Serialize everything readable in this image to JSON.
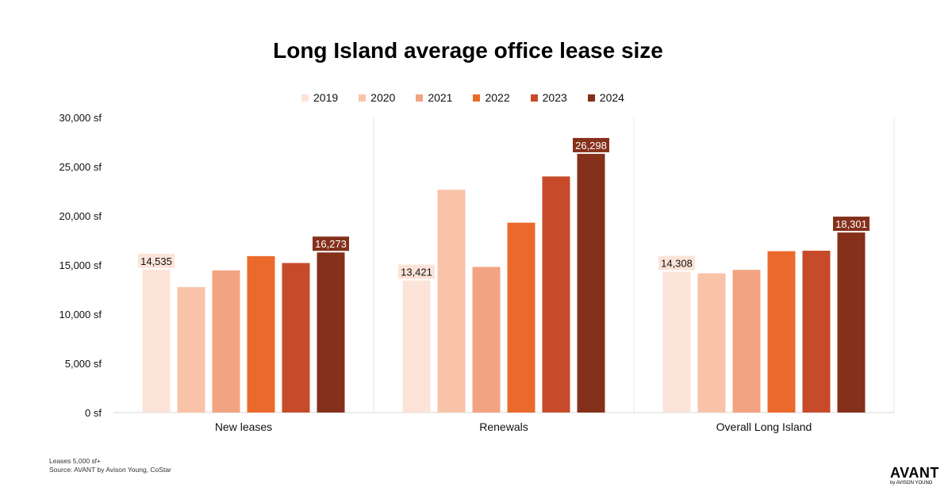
{
  "chart_data": {
    "type": "bar",
    "title": "Long Island average office lease size",
    "categories": [
      "New leases",
      "Renewals",
      "Overall Long Island"
    ],
    "series": [
      {
        "name": "2019",
        "color": "#fce3d8",
        "values": [
          14535,
          13421,
          14308
        ]
      },
      {
        "name": "2020",
        "color": "#f8c3a9",
        "values": [
          12750,
          22650,
          14150
        ]
      },
      {
        "name": "2021",
        "color": "#f2a482",
        "values": [
          14450,
          14800,
          14500
        ]
      },
      {
        "name": "2022",
        "color": "#eb6a2b",
        "values": [
          15900,
          19300,
          16400
        ]
      },
      {
        "name": "2023",
        "color": "#c74b2a",
        "values": [
          15200,
          24000,
          16450
        ]
      },
      {
        "name": "2024",
        "color": "#84301b",
        "values": [
          16273,
          26298,
          18301
        ]
      }
    ],
    "data_labels": [
      {
        "series": "2019",
        "category": "New leases",
        "text": "14,535"
      },
      {
        "series": "2024",
        "category": "New leases",
        "text": "16,273"
      },
      {
        "series": "2019",
        "category": "Renewals",
        "text": "13,421"
      },
      {
        "series": "2024",
        "category": "Renewals",
        "text": "26,298"
      },
      {
        "series": "2019",
        "category": "Overall Long Island",
        "text": "14,308"
      },
      {
        "series": "2024",
        "category": "Overall Long Island",
        "text": "18,301"
      }
    ],
    "y_ticks": [
      "0 sf",
      "5,000 sf",
      "10,000 sf",
      "15,000 sf",
      "20,000 sf",
      "25,000 sf",
      "30,000 sf"
    ],
    "ylim": [
      0,
      30000
    ],
    "xlabel": "",
    "ylabel": "",
    "legend_position": "top-center",
    "grid": false
  },
  "footnote": {
    "line1": "Leases 5,000 sf+",
    "line2": "Source: AVANT by Avison Young, CoStar"
  },
  "logo": {
    "main": "AVANT",
    "sub": "by AVISON YOUNG"
  }
}
